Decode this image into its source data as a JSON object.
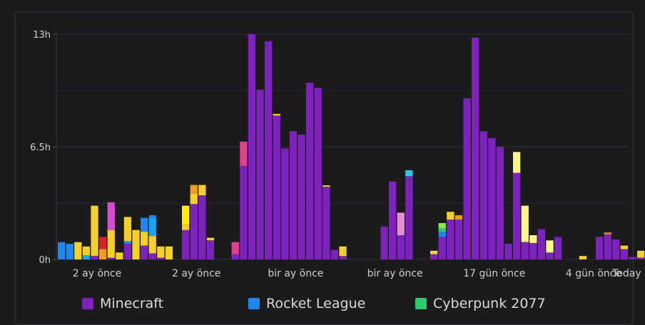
{
  "chart_data": {
    "type": "bar",
    "stacked": true,
    "y_unit": "h",
    "ylim": [
      0,
      13
    ],
    "y_ticks": [
      "0h",
      "6.5h",
      "13h"
    ],
    "y_tick_values": [
      0,
      6.5,
      13
    ],
    "x_tick_labels": [
      "2 ay önce",
      "2 ay önce",
      "bir ay önce",
      "bir ay önce",
      "17 gün önce",
      "4 gün önce",
      "Today"
    ],
    "x_tick_positions": [
      0,
      12,
      24,
      36,
      48,
      60,
      64
    ],
    "grid": true,
    "legend": {
      "placement": "bottom",
      "entries": [
        {
          "label": "Minecraft",
          "color": "#7e22bd"
        },
        {
          "label": "Rocket League",
          "color": "#1e88ee"
        },
        {
          "label": "Cyberpunk 2077",
          "color": "#2ecc71"
        }
      ]
    },
    "colors": {
      "Minecraft": "#7e22bd",
      "Rocket League": "#1e88ee",
      "Cyberpunk 2077": "#2ecc71",
      "yellow": "#f5cf2a",
      "bright_yellow": "#ffee00",
      "pale_yellow": "#fbf58a",
      "orange": "#f29c1b",
      "red": "#dd1d2b",
      "magenta": "#d54ccf",
      "pink": "#e0408e",
      "light_pink": "#e58fd0",
      "cyan": "#2ec4e6",
      "sky": "#19a6ec",
      "lime": "#8ce83a"
    },
    "days": [
      [
        [
          "Rocket League",
          1.0
        ]
      ],
      [
        [
          "Rocket League",
          0.9
        ]
      ],
      [
        [
          "yellow",
          1.0
        ]
      ],
      [
        [
          "sky",
          0.25
        ],
        [
          "yellow",
          0.5
        ]
      ],
      [
        [
          "Minecraft",
          0.2
        ],
        [
          "yellow",
          2.9
        ]
      ],
      [
        [
          "orange",
          0.6
        ],
        [
          "red",
          0.7
        ]
      ],
      [
        [
          "Minecraft",
          0.1
        ],
        [
          "yellow",
          1.6
        ],
        [
          "magenta",
          1.6
        ]
      ],
      [
        [
          "yellow",
          0.4
        ]
      ],
      [
        [
          "Minecraft",
          0.9
        ],
        [
          "Rocket League",
          0.15
        ],
        [
          "yellow",
          1.4
        ]
      ],
      [
        [
          "yellow",
          1.7
        ]
      ],
      [
        [
          "Minecraft",
          0.8
        ],
        [
          "yellow",
          0.8
        ],
        [
          "Rocket League",
          0.8
        ]
      ],
      [
        [
          "Minecraft",
          0.35
        ],
        [
          "yellow",
          1.0
        ],
        [
          "sky",
          1.05
        ],
        [
          "Rocket League",
          0.15
        ]
      ],
      [
        [
          "Minecraft",
          0.1
        ],
        [
          "yellow",
          0.65
        ]
      ],
      [
        [
          "yellow",
          0.75
        ]
      ],
      [],
      [
        [
          "Minecraft",
          1.7
        ],
        [
          "yellow",
          0.3
        ],
        [
          "bright_yellow",
          1.1
        ]
      ],
      [
        [
          "Minecraft",
          3.2
        ],
        [
          "yellow",
          0.6
        ],
        [
          "orange",
          0.5
        ]
      ],
      [
        [
          "Minecraft",
          3.7
        ],
        [
          "yellow",
          0.6
        ]
      ],
      [
        [
          "Minecraft",
          1.1
        ],
        [
          "yellow",
          0.15
        ]
      ],
      [],
      [],
      [
        [
          "Minecraft",
          0.3
        ],
        [
          "pink",
          0.7
        ]
      ],
      [
        [
          "Minecraft",
          5.4
        ],
        [
          "pink",
          1.4
        ]
      ],
      [
        [
          "Minecraft",
          13
        ]
      ],
      [
        [
          "Minecraft",
          9.8
        ]
      ],
      [
        [
          "Minecraft",
          12.6
        ]
      ],
      [
        [
          "Minecraft",
          8.3
        ],
        [
          "yellow",
          0.1
        ]
      ],
      [
        [
          "Minecraft",
          6.4
        ]
      ],
      [
        [
          "Minecraft",
          7.4
        ]
      ],
      [
        [
          "Minecraft",
          7.2
        ]
      ],
      [
        [
          "Minecraft",
          10.2
        ]
      ],
      [
        [
          "Minecraft",
          9.9
        ]
      ],
      [
        [
          "Minecraft",
          4.2
        ],
        [
          "yellow",
          0.08
        ]
      ],
      [
        [
          "Minecraft",
          0.55
        ]
      ],
      [
        [
          "Minecraft",
          0.2
        ],
        [
          "yellow",
          0.55
        ]
      ],
      [],
      [],
      [],
      [],
      [
        [
          "Minecraft",
          1.9
        ]
      ],
      [
        [
          "Minecraft",
          4.5
        ]
      ],
      [
        [
          "Minecraft",
          1.4
        ],
        [
          "light_pink",
          1.3
        ]
      ],
      [
        [
          "Minecraft",
          4.8
        ],
        [
          "cyan",
          0.35
        ]
      ],
      [],
      [],
      [
        [
          "Minecraft",
          0.3
        ],
        [
          "yellow",
          0.2
        ]
      ],
      [
        [
          "Minecraft",
          1.3
        ],
        [
          "Rocket League",
          0.3
        ],
        [
          "Cyberpunk 2077",
          0.2
        ],
        [
          "lime",
          0.3
        ]
      ],
      [
        [
          "Minecraft",
          2.3
        ],
        [
          "yellow",
          0.45
        ]
      ],
      [
        [
          "Minecraft",
          2.3
        ],
        [
          "orange",
          0.25
        ]
      ],
      [
        [
          "Minecraft",
          9.3
        ]
      ],
      [
        [
          "Minecraft",
          12.8
        ]
      ],
      [
        [
          "Minecraft",
          7.4
        ]
      ],
      [
        [
          "Minecraft",
          7.0
        ]
      ],
      [
        [
          "Minecraft",
          6.5
        ]
      ],
      [
        [
          "Minecraft",
          0.9
        ]
      ],
      [
        [
          "Minecraft",
          5.0
        ],
        [
          "pale_yellow",
          1.2
        ]
      ],
      [
        [
          "Minecraft",
          1.0
        ],
        [
          "pale_yellow",
          2.1
        ]
      ],
      [
        [
          "Minecraft",
          0.95
        ],
        [
          "pale_yellow",
          0.45
        ]
      ],
      [
        [
          "Minecraft",
          1.75
        ]
      ],
      [
        [
          "Minecraft",
          0.4
        ],
        [
          "pale_yellow",
          0.7
        ]
      ],
      [
        [
          "Minecraft",
          1.3
        ]
      ],
      [],
      [],
      [
        [
          "yellow",
          0.2
        ]
      ],
      [],
      [
        [
          "Minecraft",
          1.3
        ]
      ],
      [
        [
          "Minecraft",
          1.45
        ],
        [
          "orange",
          0.1
        ]
      ],
      [
        [
          "Minecraft",
          1.15
        ]
      ],
      [
        [
          "Minecraft",
          0.6
        ],
        [
          "yellow",
          0.2
        ]
      ],
      [
        [
          "Minecraft",
          0.15
        ]
      ],
      [
        [
          "Minecraft",
          0.1
        ],
        [
          "yellow",
          0.4
        ]
      ]
    ]
  }
}
